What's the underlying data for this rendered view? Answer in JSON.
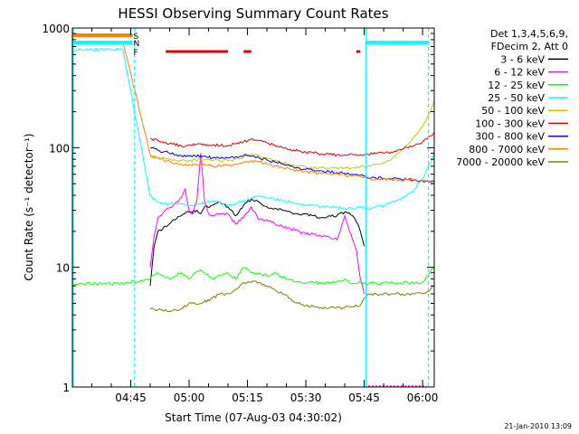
{
  "chart_data": {
    "type": "line",
    "title": "HESSI Observing Summary Count Rates",
    "xlabel": "Start Time (07-Aug-03 04:30:02)",
    "ylabel": "Count Rate (s⁻¹ detector⁻¹)",
    "x_unit": "minutes after 04:30:02",
    "xlim": [
      0,
      93
    ],
    "ylim": [
      1,
      1000
    ],
    "yscale": "log",
    "grid": false,
    "legend_placement": "outside-right",
    "x_ticks": [
      {
        "value": 15,
        "label": "04:45"
      },
      {
        "value": 30,
        "label": "05:00"
      },
      {
        "value": 45,
        "label": "05:15"
      },
      {
        "value": 60,
        "label": "05:30"
      },
      {
        "value": 75,
        "label": "05:45"
      },
      {
        "value": 90,
        "label": "06:00"
      }
    ],
    "y_ticks": [
      {
        "value": 1,
        "label": "1"
      },
      {
        "value": 10,
        "label": "10"
      },
      {
        "value": 100,
        "label": "100"
      },
      {
        "value": 1000,
        "label": "1000"
      }
    ],
    "legend_header": [
      "Det 1,3,4,5,6,9,",
      "FDecim 2, Att 0"
    ],
    "series": [
      {
        "name": "3 - 6 keV",
        "color": "#000000",
        "x": [
          20,
          21,
          22,
          24,
          26,
          28,
          30,
          32,
          33,
          34,
          36,
          38,
          40,
          42,
          44,
          46,
          48,
          50,
          52,
          54,
          56,
          58,
          60,
          62,
          64,
          66,
          68,
          70,
          72,
          73,
          74,
          75
        ],
        "y": [
          7,
          15,
          20,
          22,
          25,
          27,
          29,
          30,
          28,
          32,
          33,
          35,
          32,
          27,
          33,
          37,
          35,
          32,
          31,
          30,
          29,
          28,
          28,
          27,
          26,
          27,
          27,
          29,
          27,
          24,
          20,
          15
        ]
      },
      {
        "name": "6 - 12 keV",
        "color": "#ff00ff",
        "x": [
          20,
          21,
          22,
          24,
          26,
          28,
          29,
          30,
          31,
          32,
          33,
          34,
          35,
          36,
          38,
          40,
          42,
          44,
          46,
          48,
          50,
          52,
          54,
          56,
          58,
          60,
          62,
          64,
          66,
          68,
          70,
          72,
          73,
          74,
          75
        ],
        "y": [
          10,
          18,
          26,
          30,
          33,
          38,
          45,
          30,
          28,
          36,
          90,
          35,
          28,
          27,
          28,
          28,
          23,
          26,
          32,
          25,
          25,
          23,
          22,
          21,
          20,
          19,
          19,
          18,
          18,
          17,
          27,
          17,
          14,
          8,
          6
        ]
      },
      {
        "name": "12 - 25 keV",
        "color": "#00ff00",
        "x": [
          -1,
          13,
          20,
          22,
          25,
          28,
          30,
          33,
          36,
          38,
          40,
          42,
          44,
          46,
          48,
          50,
          52,
          55,
          58,
          60,
          62,
          64,
          66,
          68,
          70,
          72,
          74,
          75,
          90,
          93
        ],
        "y": [
          7.3,
          7.3,
          8,
          9,
          8,
          9,
          8,
          9.5,
          8,
          8.5,
          9,
          8,
          10,
          9,
          9,
          8.5,
          9,
          8,
          7.5,
          7.3,
          7.5,
          7.3,
          7.4,
          7.6,
          8,
          7.3,
          7.5,
          7.3,
          7.5,
          10
        ]
      },
      {
        "name": "25 - 50 keV",
        "color": "#00ffff",
        "x": [
          -1,
          13,
          20,
          22,
          25,
          28,
          30,
          33,
          36,
          38,
          40,
          42,
          44,
          46,
          48,
          50,
          52,
          54,
          56,
          58,
          60,
          62,
          64,
          66,
          68,
          70,
          72,
          74,
          76,
          78,
          80,
          82,
          84,
          86,
          88,
          90,
          92,
          93
        ],
        "y": [
          660,
          660,
          40,
          35,
          34,
          34,
          33,
          34,
          36,
          35,
          33,
          34,
          36,
          38,
          40,
          38,
          37,
          36,
          35,
          34,
          33,
          33,
          32,
          32,
          32,
          31,
          31,
          32,
          31,
          32,
          33,
          35,
          37,
          40,
          45,
          55,
          75,
          90
        ]
      },
      {
        "name": "50 - 100 keV",
        "color": "#c8c800",
        "x": [
          20,
          22,
          25,
          28,
          30,
          33,
          36,
          38,
          40,
          42,
          44,
          46,
          48,
          50,
          52,
          54,
          56,
          58,
          60,
          62,
          64,
          66,
          68,
          70,
          72,
          74,
          76,
          78,
          80,
          82,
          84,
          86,
          88,
          90,
          92,
          93
        ],
        "y": [
          85,
          82,
          80,
          78,
          78,
          80,
          78,
          77,
          78,
          80,
          84,
          88,
          86,
          82,
          78,
          75,
          72,
          70,
          69,
          68,
          68,
          67,
          67,
          68,
          68,
          69,
          70,
          72,
          75,
          80,
          90,
          105,
          125,
          150,
          200,
          240
        ]
      },
      {
        "name": "100 - 300 keV",
        "color": "#e00000",
        "x": [
          20,
          22,
          25,
          28,
          30,
          33,
          36,
          38,
          40,
          42,
          44,
          46,
          48,
          50,
          52,
          54,
          56,
          58,
          60,
          62,
          64,
          66,
          68,
          70,
          72,
          74,
          76,
          78,
          80,
          82,
          84,
          86,
          88,
          90,
          92,
          93
        ],
        "y": [
          120,
          115,
          108,
          104,
          105,
          108,
          105,
          104,
          104,
          108,
          112,
          118,
          115,
          110,
          105,
          100,
          97,
          94,
          92,
          90,
          89,
          88,
          87,
          87,
          88,
          87,
          88,
          89,
          90,
          92,
          96,
          100,
          105,
          112,
          125,
          135
        ]
      },
      {
        "name": "300 - 800 keV",
        "color": "#0000e0",
        "x": [
          20,
          22,
          25,
          28,
          30,
          33,
          36,
          38,
          40,
          42,
          44,
          46,
          48,
          50,
          52,
          54,
          56,
          58,
          60,
          62,
          64,
          66,
          68,
          70,
          72,
          74,
          75,
          76,
          78,
          80,
          82,
          84,
          86,
          88,
          90,
          92,
          93
        ],
        "y": [
          100,
          95,
          90,
          86,
          85,
          86,
          82,
          81,
          82,
          84,
          86,
          85,
          82,
          79,
          76,
          73,
          70,
          68,
          66,
          65,
          64,
          63,
          62,
          61,
          60,
          59,
          58,
          56,
          56,
          55,
          55,
          55,
          54,
          54,
          53,
          52,
          52
        ]
      },
      {
        "name": "800 - 7000 keV",
        "color": "#ff8000",
        "x": [
          -1,
          13,
          20,
          22,
          25,
          28,
          30,
          33,
          36,
          38,
          40,
          42,
          44,
          46,
          48,
          50,
          52,
          54,
          56,
          58,
          60,
          62,
          64,
          66,
          68,
          70,
          72,
          74,
          75,
          76,
          78,
          80,
          82,
          84,
          86,
          88,
          90,
          92,
          93
        ],
        "y": [
          760,
          760,
          88,
          82,
          76,
          73,
          72,
          73,
          71,
          70,
          71,
          73,
          76,
          78,
          76,
          73,
          70,
          68,
          66,
          64,
          63,
          62,
          61,
          60,
          60,
          59,
          58,
          57,
          56,
          55,
          55,
          55,
          54,
          54,
          54,
          53,
          53,
          52,
          51
        ]
      },
      {
        "name": "7000 - 20000 keV",
        "color": "#808000",
        "x": [
          20,
          22,
          25,
          28,
          30,
          33,
          36,
          38,
          40,
          42,
          44,
          46,
          48,
          50,
          52,
          54,
          56,
          58,
          60,
          62,
          64,
          66,
          68,
          70,
          72,
          74,
          75,
          76,
          78,
          80,
          82,
          84,
          86,
          88,
          90,
          92,
          93
        ],
        "y": [
          4.5,
          4.4,
          4.3,
          4.5,
          5,
          5,
          5.5,
          6,
          6,
          6.5,
          7.5,
          7.5,
          7.5,
          7,
          6.5,
          6,
          5.5,
          5,
          4.8,
          4.7,
          4.6,
          4.6,
          4.6,
          4.6,
          4.7,
          4.8,
          5.5,
          6,
          6,
          6,
          6,
          6,
          6,
          6,
          6,
          6.5,
          7
        ]
      }
    ],
    "flag_labels": [
      "S",
      "N",
      "F"
    ],
    "flag_colors": [
      "#ff8000",
      "#00ffff",
      "#e00000"
    ],
    "flare_flag_intervals": [
      [
        24,
        40
      ],
      [
        44,
        46
      ],
      [
        73,
        74
      ]
    ],
    "vertical_lines_solid": [
      75.5
    ],
    "vertical_lines_dashed": [
      16,
      75.5,
      91.5
    ],
    "night_marker_color": "#ff00ff"
  },
  "footer": {
    "timestamp": "21-Jan-2010 13:09"
  }
}
